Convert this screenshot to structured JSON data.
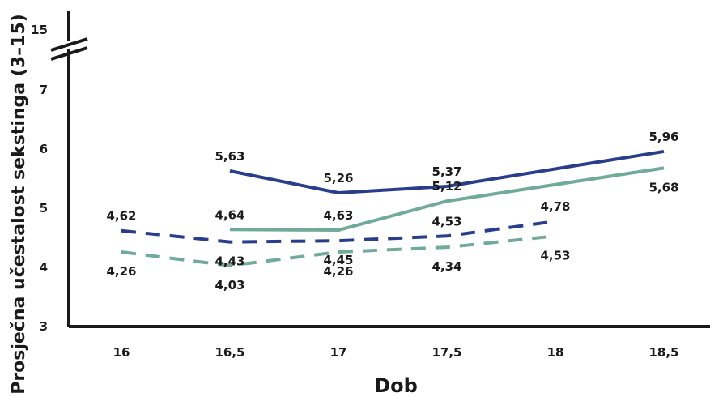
{
  "chart_data": {
    "type": "line",
    "xlabel": "Dob",
    "ylabel": "Prosječna učestalost sekstinga (3–15)",
    "categories": [
      "16",
      "16,5",
      "17",
      "17,5",
      "18",
      "18,5"
    ],
    "y_ticks": [
      "3",
      "4",
      "5",
      "6",
      "7",
      "15"
    ],
    "y_axis_break": true,
    "ylim": [
      3,
      7
    ],
    "grid": false,
    "series": [
      {
        "style": "solid",
        "color": "#283e8c",
        "values": [
          null,
          5.63,
          5.26,
          5.37,
          null,
          5.96
        ],
        "labels": [
          "",
          "5,63",
          "5,26",
          "5,37",
          "",
          "5,96"
        ],
        "label_pos": [
          "above",
          "above",
          "above",
          "above",
          "above",
          "above"
        ]
      },
      {
        "style": "solid",
        "color": "#6fab98",
        "values": [
          null,
          4.64,
          4.63,
          5.12,
          null,
          5.68
        ],
        "labels": [
          "",
          "4,64",
          "4,63",
          "5,12",
          "",
          "5,68"
        ],
        "label_pos": [
          "above",
          "above",
          "above",
          "above",
          "below",
          "below"
        ]
      },
      {
        "style": "dashed",
        "color": "#283e8c",
        "values": [
          4.62,
          4.43,
          4.45,
          4.53,
          4.78,
          null
        ],
        "labels": [
          "4,62",
          "4,43",
          "4,45",
          "4,53",
          "4,78",
          ""
        ],
        "label_pos": [
          "above",
          "below",
          "below",
          "above",
          "above",
          "above"
        ]
      },
      {
        "style": "dashed",
        "color": "#6fab98",
        "values": [
          4.26,
          4.03,
          4.26,
          4.34,
          4.53,
          null
        ],
        "labels": [
          "4,26",
          "4,03",
          "4,26",
          "4,34",
          "4,53",
          ""
        ],
        "label_pos": [
          "below",
          "below",
          "below",
          "below",
          "below",
          "below"
        ]
      }
    ]
  }
}
